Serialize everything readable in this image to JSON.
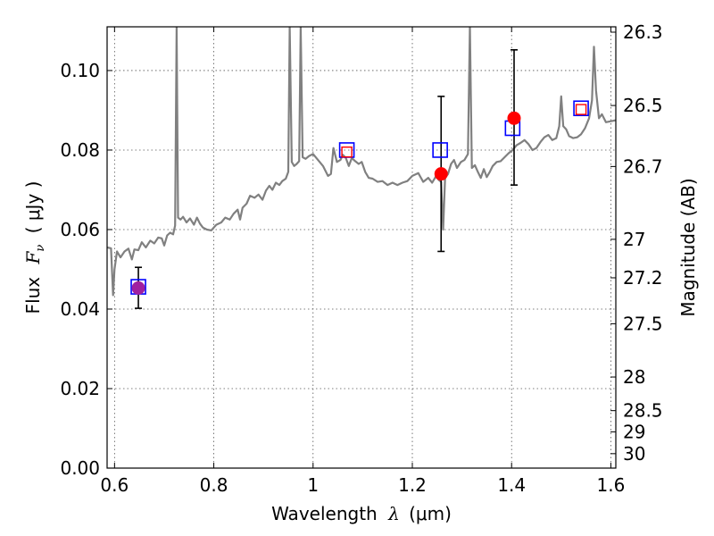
{
  "chart_data": {
    "type": "scatter",
    "xlabel": "Wavelength",
    "xlabel_symbol": "λ",
    "xlabel_unit": "(μm)",
    "ylabel": "Flux",
    "ylabel_symbol": "F",
    "ylabel_subscript": "ν",
    "ylabel_unit": "( μJy )",
    "y2label": "Magnitude (AB)",
    "xlim": [
      0.585,
      1.61
    ],
    "ylim": [
      0.0,
      0.111
    ],
    "grid": true,
    "x_ticks": [
      {
        "value": 0.6,
        "label": "0.6"
      },
      {
        "value": 0.8,
        "label": "0.8"
      },
      {
        "value": 1.0,
        "label": "1"
      },
      {
        "value": 1.2,
        "label": "1.2"
      },
      {
        "value": 1.4,
        "label": "1.4"
      },
      {
        "value": 1.6,
        "label": "1.6"
      }
    ],
    "y_ticks": [
      {
        "value": 0.0,
        "label": "0.00"
      },
      {
        "value": 0.02,
        "label": "0.02"
      },
      {
        "value": 0.04,
        "label": "0.04"
      },
      {
        "value": 0.06,
        "label": "0.06"
      },
      {
        "value": 0.08,
        "label": "0.08"
      },
      {
        "value": 0.1,
        "label": "0.10"
      }
    ],
    "y2_ticks": [
      {
        "value": 26.3,
        "label": "26.3"
      },
      {
        "value": 26.5,
        "label": "26.5"
      },
      {
        "value": 26.7,
        "label": "26.7"
      },
      {
        "value": 27.0,
        "label": "27"
      },
      {
        "value": 27.2,
        "label": "27.2"
      },
      {
        "value": 27.5,
        "label": "27.5"
      },
      {
        "value": 28.0,
        "label": "28"
      },
      {
        "value": 28.5,
        "label": "28.5"
      },
      {
        "value": 29.0,
        "label": "29"
      },
      {
        "value": 30.0,
        "label": "30"
      }
    ],
    "model_spectrum": {
      "color": "#808080",
      "points": [
        [
          0.585,
          0.0555
        ],
        [
          0.593,
          0.0553
        ],
        [
          0.597,
          0.0435
        ],
        [
          0.6,
          0.05
        ],
        [
          0.605,
          0.0545
        ],
        [
          0.612,
          0.053
        ],
        [
          0.62,
          0.0545
        ],
        [
          0.628,
          0.0552
        ],
        [
          0.635,
          0.0525
        ],
        [
          0.64,
          0.055
        ],
        [
          0.648,
          0.0548
        ],
        [
          0.655,
          0.0568
        ],
        [
          0.663,
          0.0555
        ],
        [
          0.672,
          0.0572
        ],
        [
          0.68,
          0.0565
        ],
        [
          0.688,
          0.058
        ],
        [
          0.695,
          0.0578
        ],
        [
          0.7,
          0.056
        ],
        [
          0.706,
          0.0585
        ],
        [
          0.712,
          0.0592
        ],
        [
          0.718,
          0.0588
        ],
        [
          0.722,
          0.061
        ],
        [
          0.725,
          0.111
        ],
        [
          0.728,
          0.063
        ],
        [
          0.733,
          0.0625
        ],
        [
          0.738,
          0.0632
        ],
        [
          0.745,
          0.0618
        ],
        [
          0.752,
          0.0628
        ],
        [
          0.76,
          0.0612
        ],
        [
          0.766,
          0.063
        ],
        [
          0.772,
          0.0615
        ],
        [
          0.778,
          0.0605
        ],
        [
          0.786,
          0.06
        ],
        [
          0.795,
          0.0598
        ],
        [
          0.805,
          0.0612
        ],
        [
          0.815,
          0.0618
        ],
        [
          0.823,
          0.063
        ],
        [
          0.832,
          0.0625
        ],
        [
          0.84,
          0.064
        ],
        [
          0.848,
          0.065
        ],
        [
          0.853,
          0.0625
        ],
        [
          0.858,
          0.0655
        ],
        [
          0.866,
          0.0665
        ],
        [
          0.873,
          0.0685
        ],
        [
          0.882,
          0.068
        ],
        [
          0.89,
          0.0688
        ],
        [
          0.898,
          0.0675
        ],
        [
          0.905,
          0.0698
        ],
        [
          0.912,
          0.071
        ],
        [
          0.918,
          0.07
        ],
        [
          0.925,
          0.0718
        ],
        [
          0.932,
          0.0712
        ],
        [
          0.938,
          0.0722
        ],
        [
          0.945,
          0.0728
        ],
        [
          0.95,
          0.0745
        ],
        [
          0.953,
          0.111
        ],
        [
          0.957,
          0.077
        ],
        [
          0.962,
          0.076
        ],
        [
          0.967,
          0.0765
        ],
        [
          0.972,
          0.0772
        ],
        [
          0.975,
          0.111
        ],
        [
          0.979,
          0.0782
        ],
        [
          0.985,
          0.0778
        ],
        [
          0.992,
          0.0785
        ],
        [
          1.0,
          0.079
        ],
        [
          1.01,
          0.0775
        ],
        [
          1.02,
          0.076
        ],
        [
          1.03,
          0.0735
        ],
        [
          1.036,
          0.074
        ],
        [
          1.041,
          0.0805
        ],
        [
          1.048,
          0.077
        ],
        [
          1.055,
          0.0775
        ],
        [
          1.06,
          0.0788
        ],
        [
          1.066,
          0.078
        ],
        [
          1.072,
          0.076
        ],
        [
          1.078,
          0.078
        ],
        [
          1.085,
          0.0772
        ],
        [
          1.092,
          0.0765
        ],
        [
          1.098,
          0.077
        ],
        [
          1.105,
          0.0745
        ],
        [
          1.112,
          0.073
        ],
        [
          1.12,
          0.0728
        ],
        [
          1.13,
          0.072
        ],
        [
          1.14,
          0.0722
        ],
        [
          1.15,
          0.0712
        ],
        [
          1.16,
          0.0718
        ],
        [
          1.17,
          0.0712
        ],
        [
          1.18,
          0.0718
        ],
        [
          1.19,
          0.0722
        ],
        [
          1.2,
          0.0735
        ],
        [
          1.212,
          0.0742
        ],
        [
          1.222,
          0.072
        ],
        [
          1.232,
          0.073
        ],
        [
          1.24,
          0.0718
        ],
        [
          1.248,
          0.0735
        ],
        [
          1.253,
          0.0725
        ],
        [
          1.258,
          0.072
        ],
        [
          1.262,
          0.06
        ],
        [
          1.266,
          0.073
        ],
        [
          1.272,
          0.074
        ],
        [
          1.278,
          0.0765
        ],
        [
          1.284,
          0.0775
        ],
        [
          1.29,
          0.0755
        ],
        [
          1.298,
          0.077
        ],
        [
          1.305,
          0.0775
        ],
        [
          1.312,
          0.079
        ],
        [
          1.316,
          0.111
        ],
        [
          1.32,
          0.0755
        ],
        [
          1.326,
          0.0762
        ],
        [
          1.332,
          0.0745
        ],
        [
          1.338,
          0.073
        ],
        [
          1.344,
          0.0752
        ],
        [
          1.35,
          0.0732
        ],
        [
          1.356,
          0.0745
        ],
        [
          1.362,
          0.076
        ],
        [
          1.37,
          0.077
        ],
        [
          1.378,
          0.0772
        ],
        [
          1.386,
          0.0782
        ],
        [
          1.394,
          0.0792
        ],
        [
          1.402,
          0.08
        ],
        [
          1.41,
          0.0812
        ],
        [
          1.418,
          0.0818
        ],
        [
          1.426,
          0.0825
        ],
        [
          1.434,
          0.0815
        ],
        [
          1.442,
          0.08
        ],
        [
          1.45,
          0.0805
        ],
        [
          1.458,
          0.082
        ],
        [
          1.466,
          0.0832
        ],
        [
          1.474,
          0.0838
        ],
        [
          1.482,
          0.0825
        ],
        [
          1.49,
          0.083
        ],
        [
          1.496,
          0.086
        ],
        [
          1.5,
          0.0935
        ],
        [
          1.504,
          0.086
        ],
        [
          1.51,
          0.0852
        ],
        [
          1.516,
          0.0835
        ],
        [
          1.524,
          0.083
        ],
        [
          1.532,
          0.0832
        ],
        [
          1.54,
          0.084
        ],
        [
          1.548,
          0.0855
        ],
        [
          1.556,
          0.088
        ],
        [
          1.562,
          0.0925
        ],
        [
          1.566,
          0.106
        ],
        [
          1.57,
          0.095
        ],
        [
          1.576,
          0.088
        ],
        [
          1.582,
          0.089
        ],
        [
          1.59,
          0.087
        ],
        [
          1.598,
          0.0872
        ],
        [
          1.61,
          0.0875
        ]
      ]
    },
    "observed": {
      "points": [
        {
          "x": 0.648,
          "y": 0.0453,
          "err_low": 0.0402,
          "err_high": 0.0505,
          "color": "#a020a0"
        },
        {
          "x": 1.258,
          "y": 0.074,
          "err_low": 0.0545,
          "err_high": 0.0935,
          "color": "#ff0000"
        },
        {
          "x": 1.405,
          "y": 0.088,
          "err_low": 0.0712,
          "err_high": 0.1052,
          "color": "#ff0000"
        }
      ]
    },
    "model_bandpass": {
      "points": [
        {
          "x": 0.648,
          "y": 0.0456,
          "color": "#0000ff"
        },
        {
          "x": 1.068,
          "y": 0.08,
          "color": "#0000ff"
        },
        {
          "x": 1.256,
          "y": 0.08,
          "color": "#0000ff"
        },
        {
          "x": 1.402,
          "y": 0.0855,
          "color": "#0000ff"
        },
        {
          "x": 1.54,
          "y": 0.0905,
          "color": "#0000ff"
        }
      ]
    },
    "secondary_model": {
      "points": [
        {
          "x": 1.068,
          "y": 0.0795,
          "color": "#ff0000"
        },
        {
          "x": 1.54,
          "y": 0.0902,
          "color": "#ff0000"
        }
      ]
    }
  }
}
